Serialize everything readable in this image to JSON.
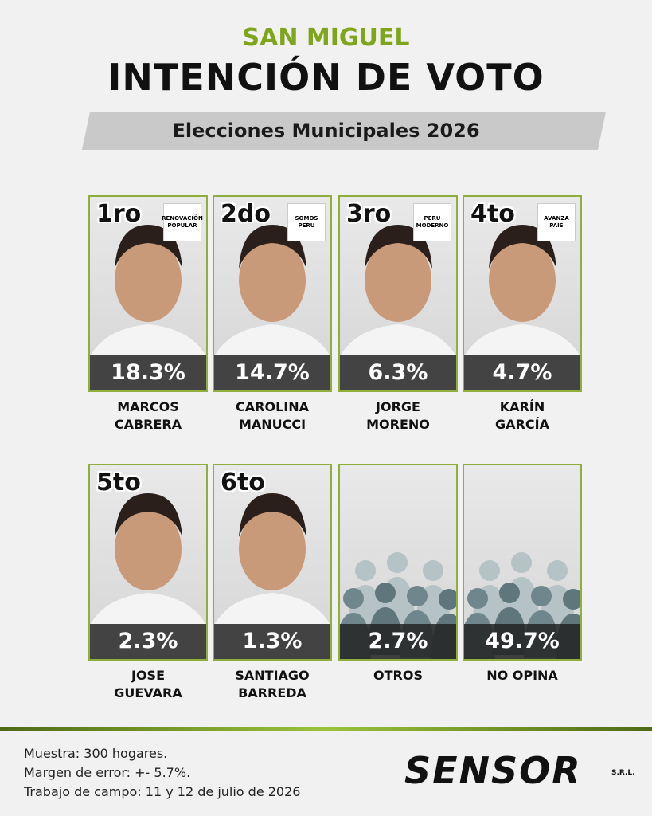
{
  "header": {
    "region": "SAN MIGUEL",
    "title": "INTENCIÓN DE VOTO",
    "subtitle": "Elecciones Municipales 2026"
  },
  "cards": [
    {
      "rank": "1ro",
      "party": "RENOVACIÓN POPULAR",
      "percent": "18.3%",
      "name": [
        "MARCOS",
        "CABRERA"
      ]
    },
    {
      "rank": "2do",
      "party": "SOMOS PERU",
      "percent": "14.7%",
      "name": [
        "CAROLINA",
        "MANUCCI"
      ]
    },
    {
      "rank": "3ro",
      "party": "PERU MODERNO",
      "percent": "6.3%",
      "name": [
        "JORGE",
        "MORENO"
      ]
    },
    {
      "rank": "4to",
      "party": "AVANZA PAÍS",
      "percent": "4.7%",
      "name": [
        "KARÍN",
        "GARCÍA"
      ]
    },
    {
      "rank": "5to",
      "percent": "2.3%",
      "name": [
        "JOSE",
        "GUEVARA"
      ]
    },
    {
      "rank": "6to",
      "percent": "1.3%",
      "name": [
        "SANTIAGO",
        "BARREDA"
      ]
    },
    {
      "percent": "2.7%",
      "name": [
        "OTROS"
      ]
    },
    {
      "percent": "49.7%",
      "name": [
        "NO OPINA"
      ]
    }
  ],
  "footer": {
    "lines": [
      "Muestra: 300 hogares.",
      "Margen de error: +- 5.7%.",
      "Trabajo de campo: 11 y 12 de julio de 2026"
    ],
    "brand": "SENSOR",
    "brand_suffix": "S.R.L."
  }
}
